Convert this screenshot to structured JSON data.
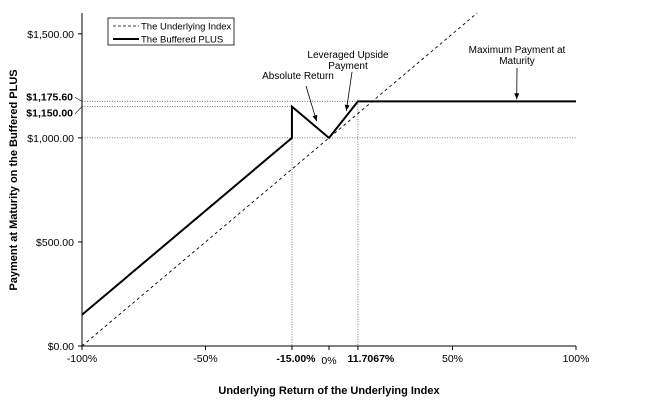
{
  "chart_data": {
    "type": "line",
    "xlabel": "Underlying Return of the Underlying Index",
    "ylabel": "Payment at Maturity on the Buffered PLUS",
    "xlim": [
      -100,
      100
    ],
    "ylim": [
      0,
      1600
    ],
    "x_ticks": [
      {
        "value": -100,
        "label": "-100%",
        "bold": false
      },
      {
        "value": -50,
        "label": "-50%",
        "bold": false
      },
      {
        "value": -15,
        "label": "-15.00%",
        "bold": true
      },
      {
        "value": 0,
        "label": "0%",
        "bold": false
      },
      {
        "value": 11.7067,
        "label": "11.7067%",
        "bold": true
      },
      {
        "value": 50,
        "label": "50%",
        "bold": false
      },
      {
        "value": 100,
        "label": "100%",
        "bold": false
      }
    ],
    "y_ticks": [
      {
        "value": 0,
        "label": "$0.00",
        "bold": false
      },
      {
        "value": 500,
        "label": "$500.00",
        "bold": false
      },
      {
        "value": 1000,
        "label": "$1,000.00",
        "bold": false
      },
      {
        "value": 1150,
        "label": "$1,150.00",
        "bold": true
      },
      {
        "value": 1175.6,
        "label": "$1,175.60",
        "bold": true
      },
      {
        "value": 1500,
        "label": "$1,500.00",
        "bold": false
      }
    ],
    "series": [
      {
        "name": "The Underlying Index",
        "style": "dashed",
        "x": [
          -100,
          60
        ],
        "y": [
          0,
          1600
        ]
      },
      {
        "name": "The Buffered PLUS",
        "style": "solid",
        "x": [
          -100,
          -15,
          -15,
          0,
          11.7067,
          100
        ],
        "y": [
          150,
          1000,
          1150,
          1000,
          1175.6,
          1175.6
        ]
      }
    ],
    "reference_lines": [
      {
        "type": "horizontal",
        "value": 1000
      },
      {
        "type": "horizontal",
        "value": 1150
      },
      {
        "type": "horizontal",
        "value": 1175.6
      },
      {
        "type": "vertical",
        "value": -15
      },
      {
        "type": "vertical",
        "value": 11.7067
      }
    ],
    "annotations": [
      {
        "lines": [
          "Absolute Return"
        ],
        "target": [
          -5,
          1070
        ]
      },
      {
        "lines": [
          "Leveraged Upside",
          "Payment"
        ],
        "target": [
          7,
          1120
        ]
      },
      {
        "lines": [
          "Maximum Payment at",
          "Maturity"
        ],
        "target": [
          76,
          1175.6
        ]
      }
    ],
    "legend": {
      "placement": "top-left"
    },
    "grid": false
  }
}
